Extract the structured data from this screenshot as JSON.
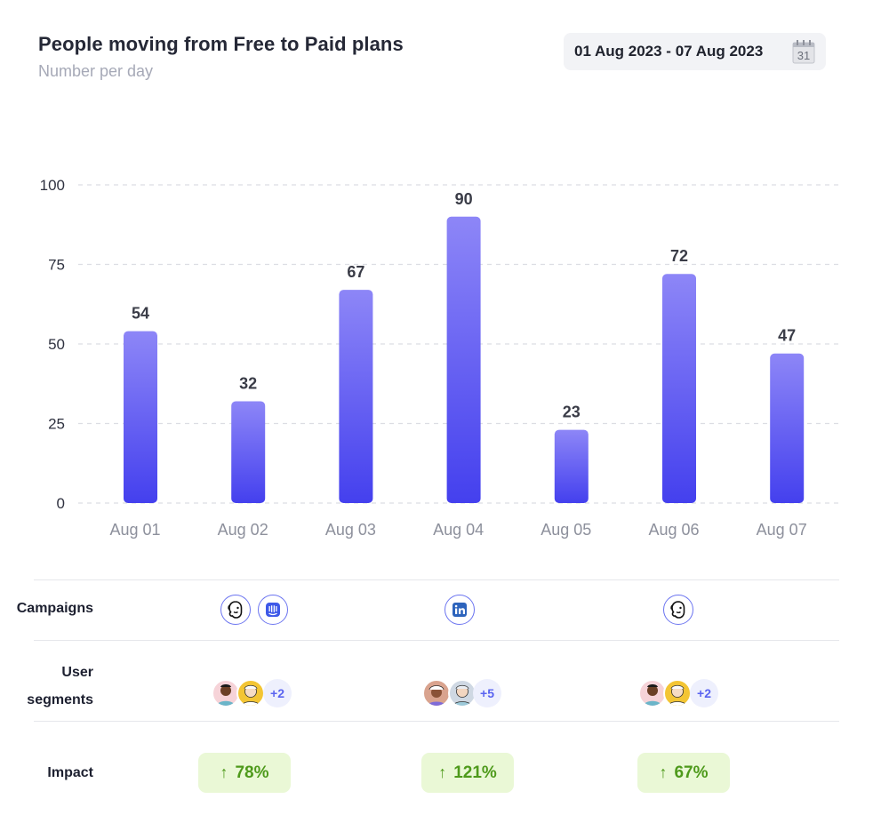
{
  "header": {
    "title": "People moving from Free to Paid plans",
    "subtitle": "Number per day",
    "date_range": "01 Aug 2023 - 07 Aug 2023",
    "calendar_day": "31"
  },
  "chart_data": {
    "type": "bar",
    "title": "People moving from Free to Paid plans",
    "subtitle": "Number per day",
    "categories": [
      "Aug 01",
      "Aug 02",
      "Aug 03",
      "Aug 04",
      "Aug 05",
      "Aug 06",
      "Aug 07"
    ],
    "values": [
      54,
      32,
      67,
      90,
      23,
      72,
      47
    ],
    "ylim": [
      0,
      100
    ],
    "yticks": [
      0,
      25,
      50,
      75,
      100
    ],
    "grid": true,
    "bar_color_top": "#8d86f7",
    "bar_color_bottom": "#4440ee",
    "grid_color": "#dcdde3"
  },
  "rows": {
    "campaigns_label": "Campaigns",
    "segments_label_line1": "User",
    "segments_label_line2": "segments",
    "impact_label": "Impact"
  },
  "campaigns": [
    {
      "day": "Aug 02",
      "icons": [
        "mailchimp-icon",
        "intercom-icon"
      ]
    },
    {
      "day": "Aug 04",
      "icons": [
        "linkedin-icon"
      ]
    },
    {
      "day": "Aug 06",
      "icons": [
        "mailchimp-icon"
      ]
    }
  ],
  "segments": [
    {
      "day": "Aug 02",
      "more": "+2"
    },
    {
      "day": "Aug 04",
      "more": "+5"
    },
    {
      "day": "Aug 06",
      "more": "+2"
    }
  ],
  "impact": [
    {
      "day": "Aug 02",
      "value": "78%",
      "direction": "up"
    },
    {
      "day": "Aug 04",
      "value": "121%",
      "direction": "up"
    },
    {
      "day": "Aug 06",
      "value": "67%",
      "direction": "up"
    }
  ],
  "colors": {
    "accent": "#5a64f0",
    "impact_bg": "#eaf8d6",
    "impact_text": "#4e9a1b"
  }
}
